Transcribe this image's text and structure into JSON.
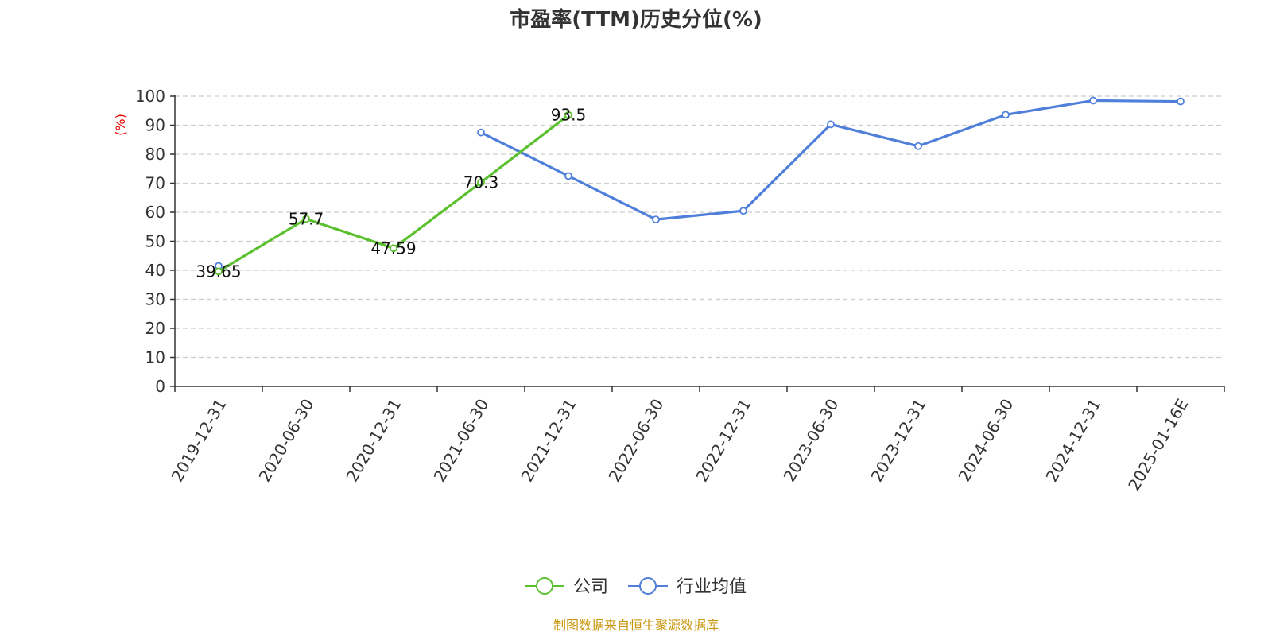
{
  "chart_data": {
    "type": "line",
    "title": "市盈率(TTM)历史分位(%)",
    "ylabel": "(%)",
    "xlabel": "",
    "ylim": [
      0,
      100
    ],
    "yticks": [
      0,
      10,
      20,
      30,
      40,
      50,
      60,
      70,
      80,
      90,
      100
    ],
    "grid": true,
    "legend_position": "bottom-center",
    "categories": [
      "2019-12-31",
      "2020-06-30",
      "2020-12-31",
      "2021-06-30",
      "2021-12-31",
      "2022-06-30",
      "2022-12-31",
      "2023-06-30",
      "2023-12-31",
      "2024-06-30",
      "2024-12-31",
      "2025-01-16E"
    ],
    "series": [
      {
        "name": "公司",
        "color": "#5ac02d",
        "values": [
          39.65,
          57.7,
          47.59,
          70.3,
          93.5,
          null,
          null,
          null,
          null,
          null,
          null,
          null
        ],
        "labels": [
          "39.65",
          "57.7",
          "47.59",
          "70.3",
          "93.5",
          null,
          null,
          null,
          null,
          null,
          null,
          null
        ]
      },
      {
        "name": "行业均值",
        "color": "#4f7fdb",
        "values": [
          41.5,
          null,
          null,
          87.5,
          72.5,
          57.5,
          60.5,
          90.3,
          82.8,
          93.6,
          98.5,
          98.2
        ]
      }
    ]
  },
  "source_text": "制图数据来自恒生聚源数据库",
  "colors": {
    "axis": "#333333",
    "grid": "#cccccc",
    "ylabel": "#e60000",
    "source": "#c8950a"
  }
}
